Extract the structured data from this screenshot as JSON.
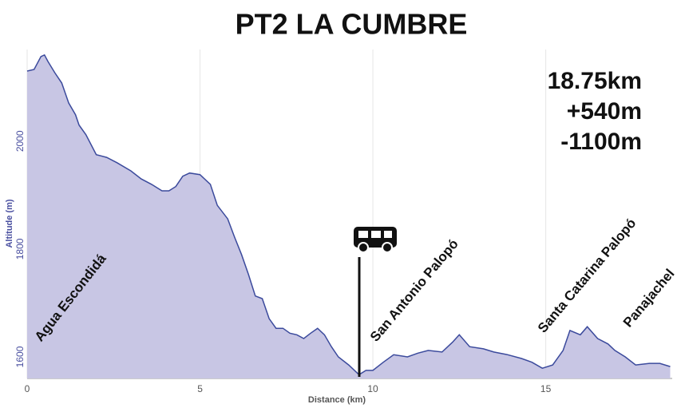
{
  "chart_data": {
    "type": "area",
    "title": "PT2 LA CUMBRE",
    "x_label": "Distance (km)",
    "y_label": "Altitude (m)",
    "stats": [
      "18.75km",
      "+540m",
      "-1100m"
    ],
    "annotations": [
      "Agua Escondidá",
      "San Antonio Palopó",
      "Santa Catarina Palopó",
      "Panajachel"
    ],
    "xlim": [
      0,
      18.75
    ],
    "ylim": [
      1560,
      2170
    ],
    "xticks": [
      0,
      5,
      10,
      15
    ],
    "yticks": [
      1600,
      1800,
      2000
    ],
    "grid": true,
    "series": [
      {
        "name": "Altitude",
        "color": "#3b4a9c",
        "fill": "#c8c6e4",
        "x": [
          0,
          0.2,
          0.4,
          0.5,
          0.6,
          0.8,
          1.0,
          1.2,
          1.4,
          1.5,
          1.7,
          2.0,
          2.3,
          2.6,
          3.0,
          3.3,
          3.6,
          3.9,
          4.1,
          4.3,
          4.5,
          4.7,
          5.0,
          5.3,
          5.5,
          5.8,
          6.0,
          6.2,
          6.4,
          6.6,
          6.8,
          7.0,
          7.2,
          7.4,
          7.6,
          7.8,
          8.0,
          8.2,
          8.4,
          8.6,
          8.8,
          9.0,
          9.3,
          9.6,
          9.8,
          10.0,
          10.3,
          10.6,
          11.0,
          11.3,
          11.6,
          12.0,
          12.3,
          12.5,
          12.8,
          13.2,
          13.5,
          13.9,
          14.3,
          14.6,
          14.9,
          15.2,
          15.5,
          15.7,
          16.0,
          16.2,
          16.5,
          16.8,
          17.0,
          17.3,
          17.6,
          18.0,
          18.3,
          18.6
        ],
        "values": [
          2130,
          2133,
          2157,
          2160,
          2148,
          2127,
          2108,
          2071,
          2049,
          2030,
          2012,
          1975,
          1970,
          1960,
          1945,
          1930,
          1920,
          1908,
          1908,
          1916,
          1935,
          1941,
          1938,
          1920,
          1881,
          1856,
          1822,
          1790,
          1753,
          1713,
          1708,
          1671,
          1653,
          1653,
          1644,
          1641,
          1634,
          1644,
          1653,
          1641,
          1619,
          1600,
          1585,
          1567,
          1575,
          1575,
          1590,
          1604,
          1600,
          1607,
          1612,
          1609,
          1627,
          1641,
          1619,
          1615,
          1609,
          1604,
          1597,
          1590,
          1579,
          1585,
          1612,
          1649,
          1641,
          1656,
          1634,
          1624,
          1612,
          1600,
          1585,
          1588,
          1588,
          1582
        ]
      }
    ]
  }
}
